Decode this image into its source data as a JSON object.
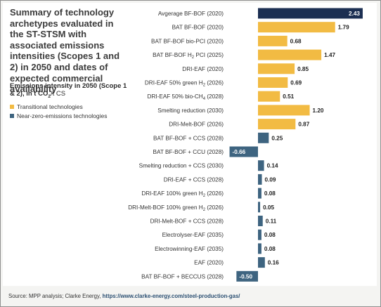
{
  "title": "Summary of technology archetypes evaluated in the ST-STSM with associated emissions intensities (Scopes 1 and 2) in 2050 and dates of expected commercial availability",
  "subtitle": {
    "main": "Emissions intensity in 2050 (Scope 1 & 2), in t CO",
    "sub": "2",
    "tail": "/t CS"
  },
  "legend": [
    {
      "label": "Transitional technologies",
      "color": "#f2bb43"
    },
    {
      "label": "Near-zero-emissions technologies",
      "color": "#3e6480"
    }
  ],
  "source": {
    "prefix": "Source: MPP analysis; Clarke Energy, ",
    "link": "https://www.clarke-energy.com/steel-production-gas/"
  },
  "chart_data": {
    "type": "bar",
    "orientation": "horizontal",
    "title": "Summary of technology archetypes evaluated in the ST-STSM with associated emissions intensities (Scopes 1 and 2) in 2050 and dates of expected commercial availability",
    "xlabel": "Emissions intensity in 2050 (Scope 1 & 2), in t CO2/t CS",
    "categories": [
      {
        "pre": "Avgerage BF-BOF (2020)"
      },
      {
        "pre": "BAT BF-BOF (2020)"
      },
      {
        "pre": "BAT BF-BOF bio-PCI (2020)"
      },
      {
        "pre": "BAT BF-BOF H",
        "sub": "2",
        "post": " PCI (2025)"
      },
      {
        "pre": "DRI-EAF (2020)"
      },
      {
        "pre": "DRI-EAF 50% green H",
        "sub": "2",
        "post": " (2026)"
      },
      {
        "pre": "DRI-EAF 50% bio-CH",
        "sub": "4",
        "post": " (2028)"
      },
      {
        "pre": "Smelting reduction (2030)"
      },
      {
        "pre": "DRI-Melt-BOF (2026)"
      },
      {
        "pre": "BAT BF-BOF + CCS (2028)"
      },
      {
        "pre": "BAT BF-BOF + CCU (2028)"
      },
      {
        "pre": "Smelting reduction + CCS (2030)"
      },
      {
        "pre": "DRI-EAF + CCS (2028)"
      },
      {
        "pre": "DRI-EAF 100% green H",
        "sub": "2",
        "post": " (2026)"
      },
      {
        "pre": "DRI-Melt-BOF 100% green H",
        "sub": "2",
        "post": " (2026)"
      },
      {
        "pre": "DRI-Melt-BOF + CCS (2028)"
      },
      {
        "pre": "Electrolyser-EAF (2035)"
      },
      {
        "pre": "Electrowinning-EAF (2035)"
      },
      {
        "pre": "EAF (2020)"
      },
      {
        "pre": "BAT BF-BOF + BECCUS (2028)"
      }
    ],
    "values": [
      2.43,
      1.79,
      0.68,
      1.47,
      0.85,
      0.69,
      0.51,
      1.2,
      0.87,
      0.25,
      -0.66,
      0.14,
      0.09,
      0.08,
      0.05,
      0.11,
      0.08,
      0.08,
      0.16,
      -0.5
    ],
    "labels": [
      "2.43",
      "1.79",
      "0.68",
      "1.47",
      "0.85",
      "0.69",
      "0.51",
      "1.20",
      "0.87",
      "0.25",
      "-0.66",
      "0.14",
      "0.09",
      "0.08",
      "0.05",
      "0.11",
      "0.08",
      "0.08",
      "0.16",
      "-0.50"
    ],
    "groups": [
      "baseline",
      "transitional",
      "transitional",
      "transitional",
      "transitional",
      "transitional",
      "transitional",
      "transitional",
      "transitional",
      "near-zero",
      "near-zero",
      "near-zero",
      "near-zero",
      "near-zero",
      "near-zero",
      "near-zero",
      "near-zero",
      "near-zero",
      "near-zero",
      "near-zero"
    ],
    "colors": {
      "baseline": "#1c2f52",
      "transitional": "#f2bb43",
      "near-zero": "#3e6480"
    },
    "xlim": [
      -0.66,
      2.43
    ],
    "grid": false,
    "legend_position": "left"
  }
}
